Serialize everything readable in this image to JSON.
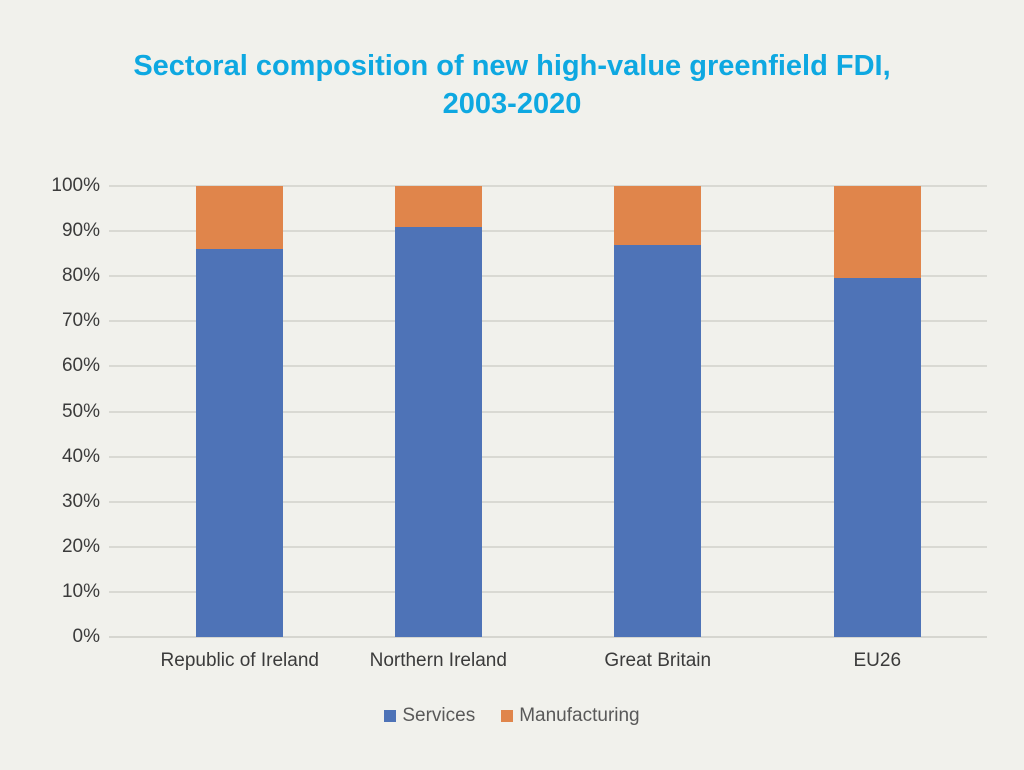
{
  "page": {
    "title_line1": "Sectoral composition of new high-value greenfield FDI,",
    "title_line2": "2003-2020",
    "title_color": "#0EA8E1",
    "background_color": "#F1F1EC"
  },
  "colors": {
    "gridline": "#D9D9D3",
    "axis_text": "#3B3B3B",
    "legend_text": "#595959"
  },
  "chart_data": {
    "type": "bar",
    "stacked": true,
    "title": "Sectoral composition of new high-value greenfield FDI, 2003-2020",
    "categories": [
      "Republic of Ireland",
      "Northern Ireland",
      "Great Britain",
      "EU26"
    ],
    "series": [
      {
        "name": "Services",
        "color": "#4E73B7",
        "values": [
          86,
          91,
          87,
          79.5
        ]
      },
      {
        "name": "Manufacturing",
        "color": "#E0854B",
        "values": [
          14,
          9,
          13,
          20.5
        ]
      }
    ],
    "xlabel": "",
    "ylabel": "",
    "ylim": [
      0,
      100
    ],
    "yticks": [
      "0%",
      "10%",
      "20%",
      "30%",
      "40%",
      "50%",
      "60%",
      "70%",
      "80%",
      "90%",
      "100%"
    ],
    "grid": true,
    "legend_position": "bottom",
    "legend_labels": [
      "Services",
      "Manufacturing"
    ]
  }
}
